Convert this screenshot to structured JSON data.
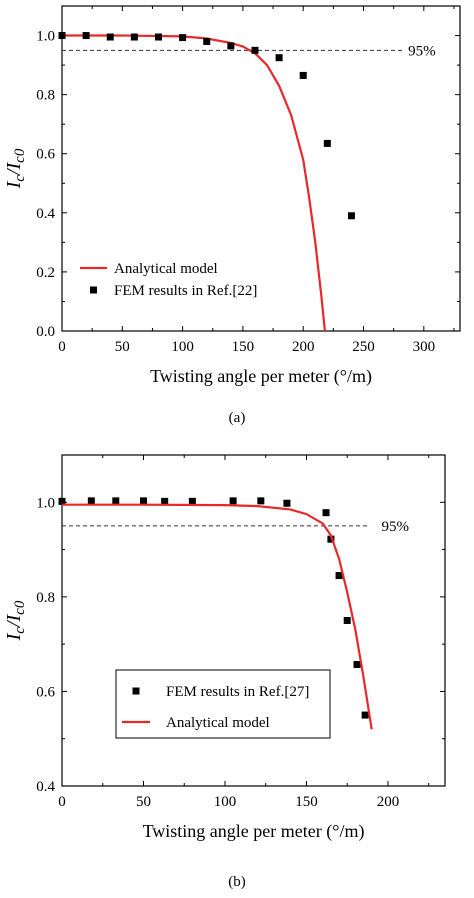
{
  "chart_data": [
    {
      "type": "line+scatter",
      "xlabel": "Twisting angle per meter (°/m)",
      "ylabel": "Ic/Ic0",
      "xlim": [
        0,
        330
      ],
      "ylim": [
        0,
        1.1
      ],
      "xticks": [
        "0",
        "50",
        "100",
        "150",
        "200",
        "250",
        "300"
      ],
      "yticks": [
        "0.0",
        "0.2",
        "0.4",
        "0.6",
        "0.8",
        "1.0"
      ],
      "threshold": {
        "value": 0.95,
        "label": "95%"
      },
      "series": [
        {
          "name": "Analytical model",
          "kind": "line",
          "color": "#e8282b",
          "x": [
            0,
            50,
            100,
            120,
            140,
            150,
            160,
            170,
            180,
            190,
            200,
            205,
            210,
            215,
            218
          ],
          "y": [
            1.0,
            1.0,
            0.997,
            0.99,
            0.975,
            0.963,
            0.94,
            0.9,
            0.83,
            0.73,
            0.58,
            0.45,
            0.3,
            0.12,
            0.0
          ]
        },
        {
          "name": "FEM results in Ref.[22]",
          "kind": "scatter",
          "color": "#000000",
          "x": [
            0,
            20,
            40,
            60,
            80,
            100,
            120,
            140,
            160,
            180,
            200,
            220,
            240
          ],
          "y": [
            1.0,
            1.0,
            0.995,
            0.995,
            0.995,
            0.993,
            0.98,
            0.965,
            0.95,
            0.925,
            0.865,
            0.635,
            0.39
          ]
        }
      ],
      "legend": {
        "position": "bottom-left"
      },
      "caption": "(a)"
    },
    {
      "type": "line+scatter",
      "xlabel": "Twisting angle per meter (°/m)",
      "ylabel": "Ic/Ic0",
      "xlim": [
        0,
        235
      ],
      "ylim": [
        0.4,
        1.1
      ],
      "xticks": [
        "0",
        "50",
        "100",
        "150",
        "200"
      ],
      "yticks": [
        "0.4",
        "0.6",
        "0.8",
        "1.0"
      ],
      "threshold": {
        "value": 0.95,
        "label": "95%"
      },
      "series": [
        {
          "name": "FEM results in Ref.[27]",
          "kind": "scatter",
          "color": "#000000",
          "x": [
            0,
            18,
            33,
            50,
            63,
            80,
            105,
            122,
            138,
            162,
            165,
            170,
            175,
            181,
            186
          ],
          "y": [
            1.002,
            1.003,
            1.003,
            1.003,
            1.002,
            1.002,
            1.003,
            1.003,
            0.998,
            0.978,
            0.922,
            0.845,
            0.75,
            0.657,
            0.55
          ]
        },
        {
          "name": "Analytical model",
          "kind": "line",
          "color": "#e8282b",
          "x": [
            0,
            50,
            100,
            120,
            140,
            150,
            160,
            165,
            170,
            175,
            180,
            185,
            190
          ],
          "y": [
            0.995,
            0.995,
            0.994,
            0.992,
            0.985,
            0.975,
            0.955,
            0.93,
            0.88,
            0.81,
            0.73,
            0.63,
            0.52
          ]
        }
      ],
      "legend": {
        "position": "bottom-left"
      },
      "caption": "(b)"
    }
  ]
}
